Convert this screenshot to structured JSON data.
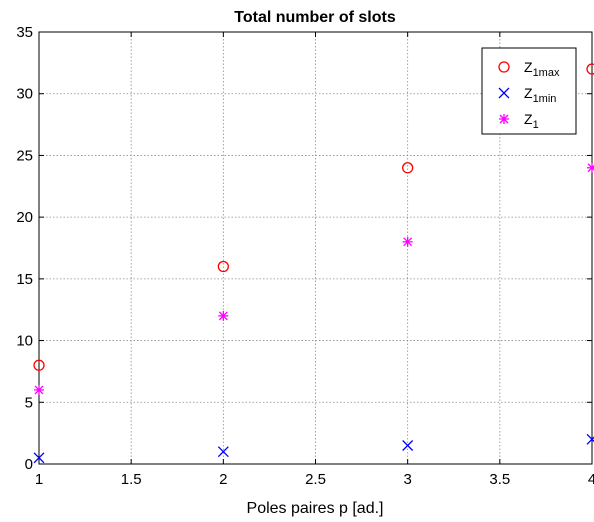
{
  "chart_data": {
    "type": "scatter",
    "title": "Total number of slots",
    "xlabel": "Poles paires p [ad.]",
    "ylabel": "",
    "xlim": [
      1,
      4
    ],
    "ylim": [
      0,
      35
    ],
    "xticks": [
      1,
      1.5,
      2,
      2.5,
      3,
      3.5,
      4
    ],
    "xtick_labels": [
      "1",
      "1.5",
      "2",
      "2.5",
      "3",
      "3.5",
      "4"
    ],
    "yticks": [
      0,
      5,
      10,
      15,
      20,
      25,
      30,
      35
    ],
    "ytick_labels": [
      "0",
      "5",
      "10",
      "15",
      "20",
      "25",
      "30",
      "35"
    ],
    "grid": true,
    "legend_position": "top-right",
    "series": [
      {
        "name": "Z",
        "subscript": "1max",
        "marker": "circle",
        "color": "#ff0000",
        "x": [
          1,
          2,
          3,
          4
        ],
        "y": [
          8,
          16,
          24,
          32
        ]
      },
      {
        "name": "Z",
        "subscript": "1min",
        "marker": "x",
        "color": "#0000ff",
        "x": [
          1,
          2,
          3,
          4
        ],
        "y": [
          0.5,
          1,
          1.5,
          2
        ]
      },
      {
        "name": "Z",
        "subscript": "1",
        "marker": "asterisk",
        "color": "#ff00ff",
        "x": [
          1,
          2,
          3,
          4
        ],
        "y": [
          6,
          12,
          18,
          24
        ]
      }
    ]
  }
}
